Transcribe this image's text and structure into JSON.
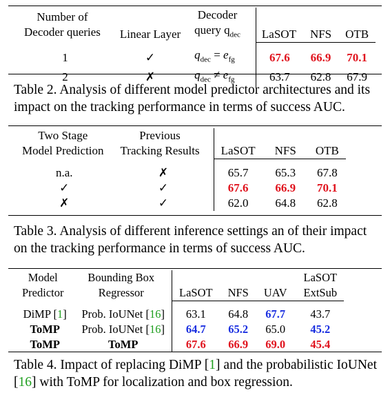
{
  "table2": {
    "headers": {
      "num_queries_line1": "Number of",
      "num_queries_line2": "Decoder queries",
      "linear_layer": "Linear Layer",
      "decoder_line1": "Decoder",
      "decoder_line2": "query q",
      "decoder_sub": "dec",
      "lasot": "LaSOT",
      "nfs": "NFS",
      "otb": "OTB"
    },
    "rows": [
      {
        "queries": "1",
        "linear": "✓",
        "query_lhs": "q",
        "query_lhs_sub": "dec",
        "query_op": " = ",
        "query_rhs": "e",
        "query_rhs_sub": "fg",
        "lasot": "67.6",
        "nfs": "66.9",
        "otb": "70.1"
      },
      {
        "queries": "2",
        "linear": "✗",
        "query_lhs": "q",
        "query_lhs_sub": "dec",
        "query_op": " ≠ ",
        "query_rhs": "e",
        "query_rhs_sub": "fg",
        "lasot": "63.7",
        "nfs": "62.8",
        "otb": "67.9"
      }
    ],
    "caption": "Table 2. Analysis of different model predictor architectures and its impact on the tracking performance in terms of success AUC."
  },
  "table3": {
    "headers": {
      "two_stage_line1": "Two Stage",
      "two_stage_line2": "Model Prediction",
      "prev_line1": "Previous",
      "prev_line2": "Tracking Results",
      "lasot": "LaSOT",
      "nfs": "NFS",
      "otb": "OTB"
    },
    "rows": [
      {
        "two_stage": "n.a.",
        "prev": "✗",
        "lasot": "65.7",
        "nfs": "65.3",
        "otb": "67.8"
      },
      {
        "two_stage": "✓",
        "prev": "✓",
        "lasot": "67.6",
        "nfs": "66.9",
        "otb": "70.1"
      },
      {
        "two_stage": "✗",
        "prev": "✓",
        "lasot": "62.0",
        "nfs": "64.8",
        "otb": "62.8"
      }
    ],
    "caption": "Table 3. Analysis of different inference settings an of their impact on the tracking performance in terms of success AUC."
  },
  "table4": {
    "headers": {
      "model_line1": "Model",
      "model_line2": "Predictor",
      "bbox_line1": "Bounding Box",
      "bbox_line2": "Regressor",
      "lasot": "LaSOT",
      "nfs": "NFS",
      "uav": "UAV",
      "ext_line1": "LaSOT",
      "ext_line2": "ExtSub"
    },
    "rows": [
      {
        "model": "DiMP",
        "model_cite": "1",
        "reg": "Prob. IoUNet",
        "reg_cite": "16",
        "lasot": "63.1",
        "nfs": "64.8",
        "uav": "67.7",
        "ext": "43.7"
      },
      {
        "model": "ToMP",
        "model_cite": "",
        "reg": "Prob. IoUNet",
        "reg_cite": "16",
        "lasot": "64.7",
        "nfs": "65.2",
        "uav": "65.0",
        "ext": "45.2"
      },
      {
        "model": "ToMP",
        "model_cite": "",
        "reg": "ToMP",
        "reg_cite": "",
        "lasot": "67.6",
        "nfs": "66.9",
        "uav": "69.0",
        "ext": "45.4"
      }
    ],
    "caption_part1": "Table 4.   Impact of replacing DiMP ",
    "caption_cite1": "1",
    "caption_part2": " and the probabilistic IoUNet ",
    "caption_cite2": "16",
    "caption_part3": " with ToMP for localization and box regression."
  },
  "colors": {
    "best": "#e0141e",
    "second": "#1a2fe0",
    "cite": "#1e9e1e"
  }
}
